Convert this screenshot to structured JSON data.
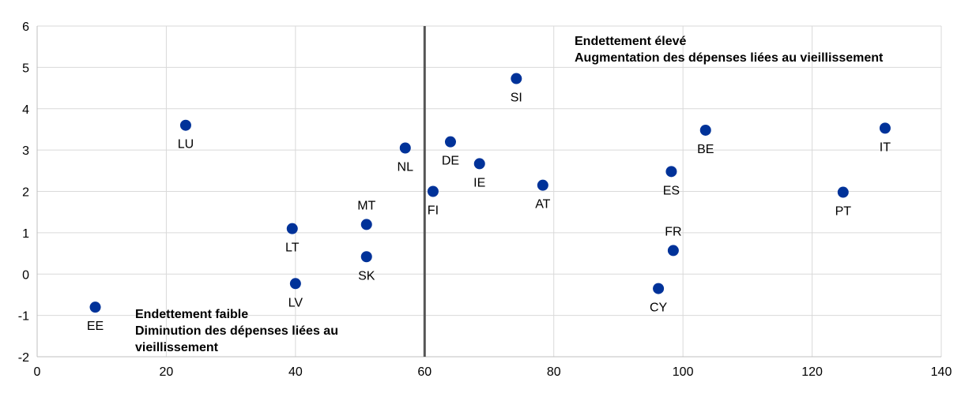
{
  "chart_data": {
    "type": "scatter",
    "title": "",
    "xlabel": "",
    "ylabel": "",
    "xlim": [
      0,
      140
    ],
    "ylim": [
      -2,
      6
    ],
    "xticks": [
      0,
      20,
      40,
      60,
      80,
      100,
      120,
      140
    ],
    "yticks": [
      -2,
      -1,
      0,
      1,
      2,
      3,
      4,
      5,
      6
    ],
    "grid": true,
    "marker_color": "#003299",
    "reference_line": {
      "x": 60,
      "color": "#555555"
    },
    "points": [
      {
        "label": "EE",
        "x": 9,
        "y": -0.8,
        "label_pos": "below"
      },
      {
        "label": "LU",
        "x": 23,
        "y": 3.6,
        "label_pos": "below"
      },
      {
        "label": "LT",
        "x": 39.5,
        "y": 1.1,
        "label_pos": "below"
      },
      {
        "label": "LV",
        "x": 40,
        "y": -0.23,
        "label_pos": "below"
      },
      {
        "label": "MT",
        "x": 51,
        "y": 1.2,
        "label_pos": "above"
      },
      {
        "label": "SK",
        "x": 51,
        "y": 0.42,
        "label_pos": "below"
      },
      {
        "label": "NL",
        "x": 57,
        "y": 3.05,
        "label_pos": "below"
      },
      {
        "label": "FI",
        "x": 61.3,
        "y": 2.0,
        "label_pos": "below"
      },
      {
        "label": "DE",
        "x": 64,
        "y": 3.2,
        "label_pos": "below"
      },
      {
        "label": "IE",
        "x": 68.5,
        "y": 2.67,
        "label_pos": "below"
      },
      {
        "label": "SI",
        "x": 74.2,
        "y": 4.73,
        "label_pos": "below"
      },
      {
        "label": "AT",
        "x": 78.3,
        "y": 2.15,
        "label_pos": "below"
      },
      {
        "label": "CY",
        "x": 96.2,
        "y": -0.35,
        "label_pos": "below"
      },
      {
        "label": "ES",
        "x": 98.2,
        "y": 2.48,
        "label_pos": "below"
      },
      {
        "label": "FR",
        "x": 98.5,
        "y": 0.57,
        "label_pos": "above"
      },
      {
        "label": "BE",
        "x": 103.5,
        "y": 3.48,
        "label_pos": "below"
      },
      {
        "label": "PT",
        "x": 124.8,
        "y": 1.98,
        "label_pos": "below"
      },
      {
        "label": "IT",
        "x": 131.3,
        "y": 3.53,
        "label_pos": "below"
      }
    ],
    "annotations": {
      "high": {
        "line1": "Endettement élevé",
        "line2": "Augmentation des dépenses liées au vieillissement"
      },
      "low": {
        "line1": "Endettement faible",
        "line2": "Diminution des dépenses liées au",
        "line3": "vieillissement"
      }
    }
  }
}
